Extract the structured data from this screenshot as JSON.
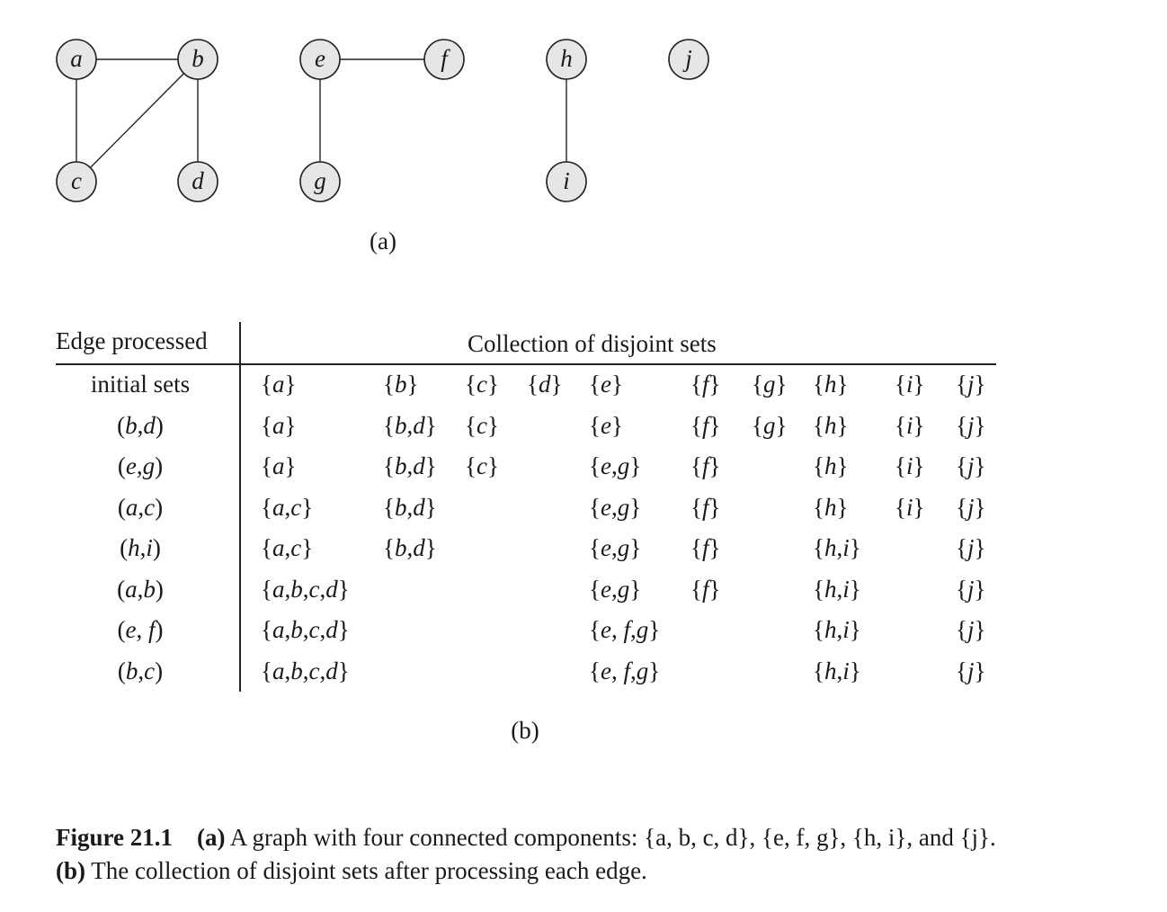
{
  "graph": {
    "nodes": [
      "a",
      "b",
      "c",
      "d",
      "e",
      "f",
      "g",
      "h",
      "i",
      "j"
    ],
    "edges": [
      [
        "a",
        "b"
      ],
      [
        "a",
        "c"
      ],
      [
        "b",
        "c"
      ],
      [
        "b",
        "d"
      ],
      [
        "e",
        "f"
      ],
      [
        "e",
        "g"
      ],
      [
        "h",
        "i"
      ]
    ],
    "sublabel": "(a)"
  },
  "table": {
    "header_left": "Edge processed",
    "header_right": "Collection of disjoint sets",
    "sublabel": "(b)",
    "rows": [
      {
        "edge": "initial sets",
        "sets": [
          "{a}",
          "{b}",
          "{c}",
          "{d}",
          "{e}",
          "{f}",
          "{g}",
          "{h}",
          "{i}",
          "{j}"
        ]
      },
      {
        "edge": "(b,d)",
        "sets": [
          "{a}",
          "{b,d}",
          "{c}",
          "",
          "{e}",
          "{f}",
          "{g}",
          "{h}",
          "{i}",
          "{j}"
        ]
      },
      {
        "edge": "(e,g)",
        "sets": [
          "{a}",
          "{b,d}",
          "{c}",
          "",
          "{e,g}",
          "{f}",
          "",
          "{h}",
          "{i}",
          "{j}"
        ]
      },
      {
        "edge": "(a,c)",
        "sets": [
          "{a,c}",
          "{b,d}",
          "",
          "",
          "{e,g}",
          "{f}",
          "",
          "{h}",
          "{i}",
          "{j}"
        ]
      },
      {
        "edge": "(h,i)",
        "sets": [
          "{a,c}",
          "{b,d}",
          "",
          "",
          "{e,g}",
          "{f}",
          "",
          "{h,i}",
          "",
          "{j}"
        ]
      },
      {
        "edge": "(a,b)",
        "sets": [
          "{a,b,c,d}",
          "",
          "",
          "",
          "{e,g}",
          "{f}",
          "",
          "{h,i}",
          "",
          "{j}"
        ]
      },
      {
        "edge": "(e, f)",
        "sets": [
          "{a,b,c,d}",
          "",
          "",
          "",
          "{e, f,g}",
          "",
          "",
          "{h,i}",
          "",
          "{j}"
        ]
      },
      {
        "edge": "(b,c)",
        "sets": [
          "{a,b,c,d}",
          "",
          "",
          "",
          "{e, f,g}",
          "",
          "",
          "{h,i}",
          "",
          "{j}"
        ]
      }
    ]
  },
  "caption": {
    "figure_label": "Figure 21.1",
    "part_a_label": "(a)",
    "part_a_text": "A graph with four connected components: {a, b, c, d}, {e, f, g}, {h, i}, and {j}.",
    "part_b_label": "(b)",
    "part_b_text": "The collection of disjoint sets after processing each edge."
  }
}
